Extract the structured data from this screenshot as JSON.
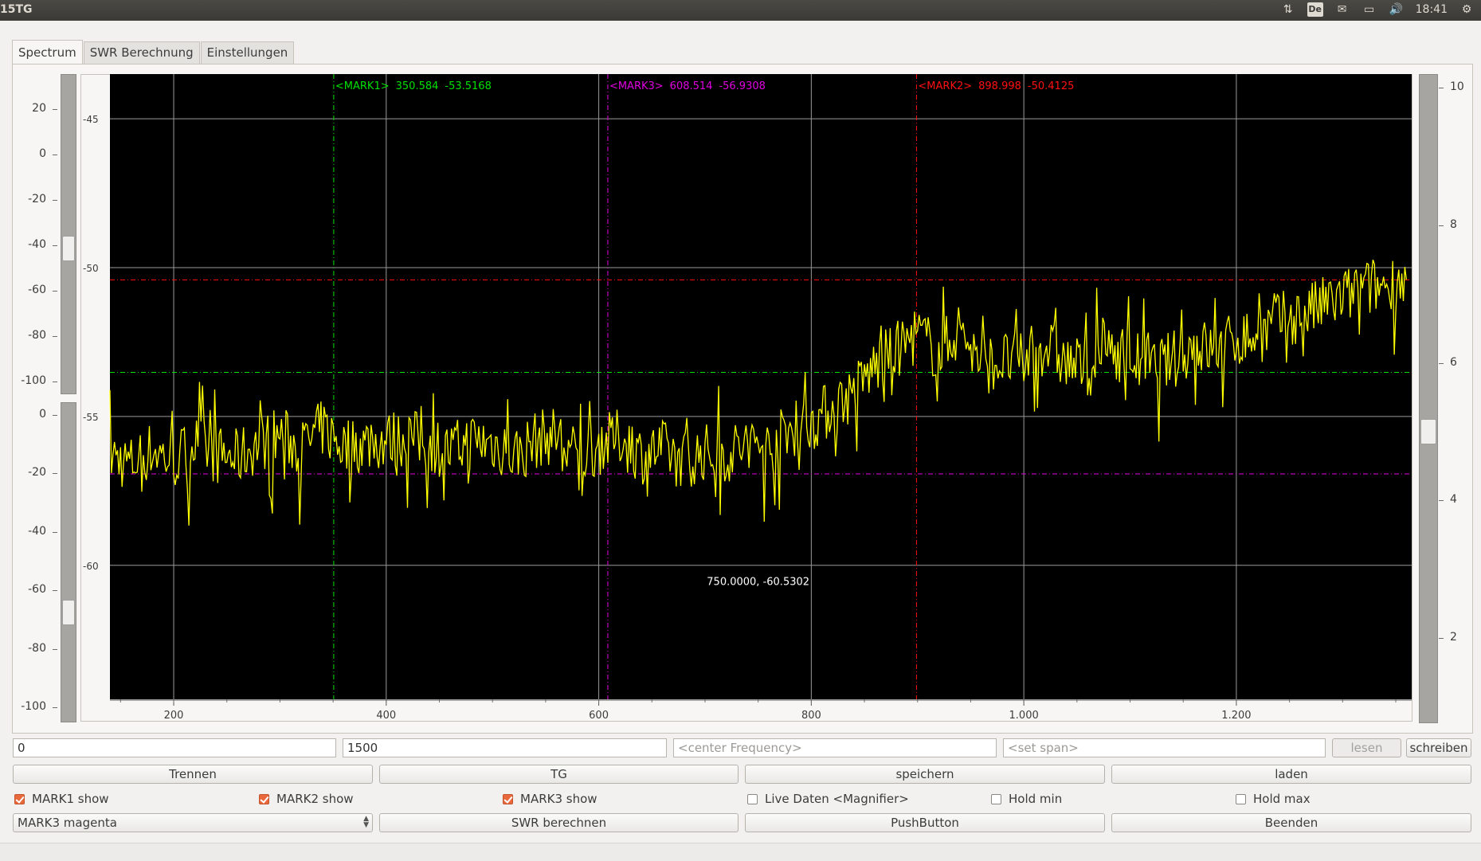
{
  "topbar": {
    "title": "15TG",
    "clock": "18:41",
    "keyboard_layout": "De",
    "icons": [
      "network-updown-icon",
      "keyboard-layout-icon",
      "mail-icon",
      "battery-icon",
      "volume-icon",
      "gear-icon"
    ]
  },
  "tabs": [
    {
      "label": "Spectrum",
      "active": true
    },
    {
      "label": "SWR Berechnung",
      "active": false
    },
    {
      "label": "Einstellungen",
      "active": false
    }
  ],
  "left_scale_top": {
    "labels": [
      "20",
      "0",
      "-20",
      "-40",
      "-60",
      "-80",
      "-100"
    ]
  },
  "left_scale_bottom": {
    "labels": [
      "0",
      "-20",
      "-40",
      "-60",
      "-80",
      "-100"
    ]
  },
  "right_scale": {
    "labels": [
      "10",
      "8",
      "6",
      "4",
      "2"
    ]
  },
  "chart_data": {
    "type": "line",
    "title": "",
    "xlabel": "",
    "ylabel": "",
    "xlim": [
      140,
      1365
    ],
    "ylim": [
      -64.5,
      -43.5
    ],
    "x_ticks": [
      "200",
      "400",
      "600",
      "800",
      "1.000",
      "1.200"
    ],
    "x_tick_values": [
      200,
      400,
      600,
      800,
      1000,
      1200
    ],
    "y_ticks": [
      "-45",
      "-50",
      "-55",
      "-60"
    ],
    "y_tick_values": [
      -45,
      -50,
      -55,
      -60
    ],
    "grid": true,
    "background": "#000000",
    "series": [
      {
        "color": "#ffff00",
        "x": [
          140,
          160,
          180,
          200,
          220,
          240,
          260,
          280,
          300,
          320,
          340,
          360,
          380,
          400,
          420,
          440,
          460,
          480,
          500,
          520,
          540,
          560,
          580,
          600,
          620,
          640,
          660,
          680,
          700,
          720,
          740,
          760,
          780,
          800,
          820,
          840,
          860,
          880,
          900,
          920,
          940,
          960,
          980,
          1000,
          1020,
          1040,
          1060,
          1080,
          1100,
          1120,
          1140,
          1160,
          1180,
          1200,
          1220,
          1240,
          1260,
          1280,
          1300,
          1320,
          1340,
          1360
        ],
        "y": [
          -56.3,
          -56.6,
          -56.1,
          -56.5,
          -55.9,
          -56.3,
          -56.4,
          -55.9,
          -55.6,
          -56.1,
          -55.4,
          -56.0,
          -55.9,
          -55.8,
          -55.7,
          -55.9,
          -56.2,
          -55.8,
          -55.9,
          -56.3,
          -55.8,
          -55.6,
          -56.4,
          -56.0,
          -55.7,
          -56.3,
          -56.1,
          -56.4,
          -56.2,
          -56.3,
          -55.9,
          -56.1,
          -55.4,
          -55.2,
          -54.7,
          -54.2,
          -53.3,
          -52.8,
          -52.2,
          -52.9,
          -52.0,
          -53.3,
          -53.1,
          -53.2,
          -52.6,
          -53.2,
          -53.4,
          -52.7,
          -53.0,
          -53.4,
          -53.1,
          -52.6,
          -52.8,
          -52.4,
          -52.3,
          -51.8,
          -51.6,
          -51.3,
          -51.0,
          -50.7,
          -50.6,
          -50.4
        ]
      }
    ],
    "markers": [
      {
        "label": "<MARK1>",
        "x": 350.584,
        "y": -53.5168,
        "x_text": "350.584",
        "y_text": "-53.5168",
        "color": "#00e000",
        "style": "dash-dot"
      },
      {
        "label": "<MARK3>",
        "x": 608.514,
        "y": -56.9308,
        "x_text": "608.514",
        "y_text": "-56.9308",
        "color": "#e000e0",
        "style": "dash-dot"
      },
      {
        "label": "<MARK2>",
        "x": 898.998,
        "y": -50.4125,
        "x_text": "898.998",
        "y_text": "-50.4125",
        "color": "#ff1010",
        "style": "dash-dot"
      }
    ],
    "cursor_readout": "750.0000, -60.5302"
  },
  "controls": {
    "start_value": "0",
    "stop_value": "1500",
    "center_placeholder": "<center Frequency>",
    "span_placeholder": "<set span>",
    "lesen_label": "lesen",
    "schreiben_label": "schreiben",
    "buttons_row1": [
      "Trennen",
      "TG",
      "speichern",
      "laden"
    ],
    "checkboxes": [
      {
        "label": "MARK1 show",
        "checked": true
      },
      {
        "label": "MARK2 show",
        "checked": true
      },
      {
        "label": "MARK3 show",
        "checked": true
      },
      {
        "label": "Live Daten <Magnifier>",
        "checked": false
      },
      {
        "label": "Hold min",
        "checked": false
      },
      {
        "label": "Hold max",
        "checked": false
      }
    ],
    "marker_select": "MARK3 magenta",
    "buttons_row3": [
      "SWR berechnen",
      "PushButton",
      "Beenden"
    ]
  }
}
